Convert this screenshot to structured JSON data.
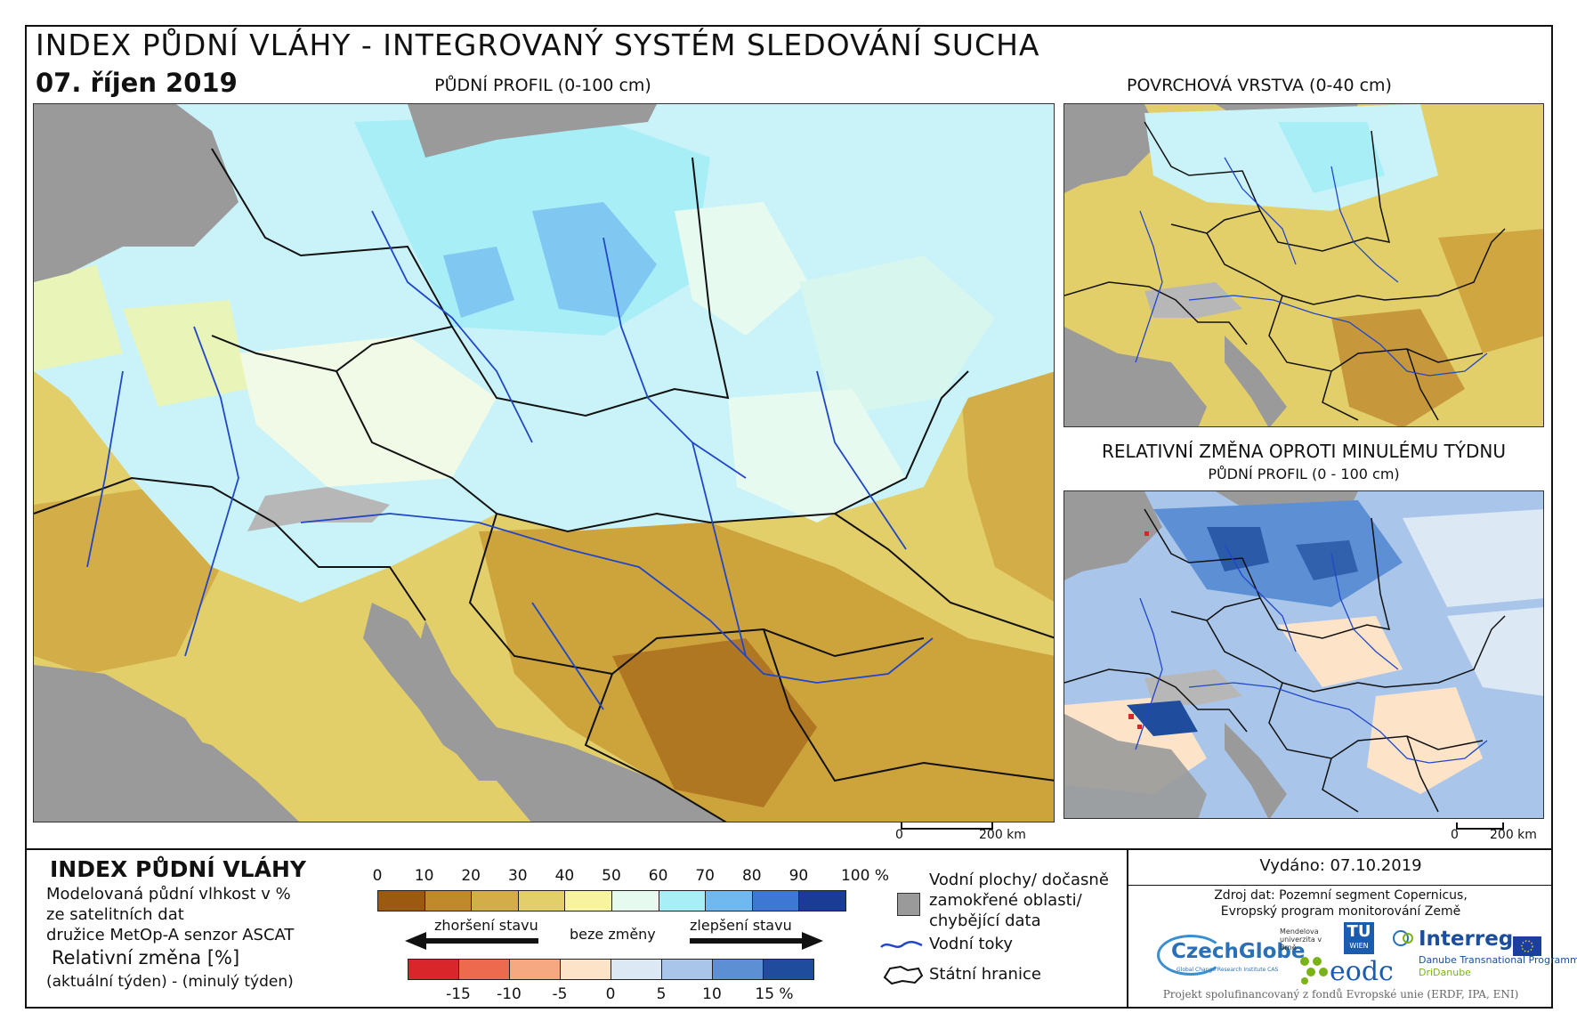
{
  "header": {
    "title": "INDEX PŮDNÍ VLÁHY - INTEGROVANÝ SYSTÉM SLEDOVÁNÍ SUCHA",
    "date": "07. říjen 2019"
  },
  "maps": {
    "main_label": "PŮDNÍ PROFIL (0-100 cm)",
    "surface_label": "POVRCHOVÁ VRSTVA (0-40 cm)",
    "change_label": "RELATIVNÍ ZMĚNA OPROTI MINULÉMU TÝDNU",
    "change_sublabel": "PŮDNÍ PROFIL (0 - 100 cm)",
    "scale_main": {
      "zero": "0",
      "end": "200 km"
    },
    "scale_small": {
      "zero": "0",
      "end": "200 km"
    }
  },
  "legend": {
    "title": "INDEX PŮDNÍ VLÁHY",
    "desc_line1": "Modelovaná půdní vlhkost v %",
    "desc_line2": "ze satelitních dat",
    "desc_line3": "družice MetOp-A senzor ASCAT",
    "change_title": "Relativní změna [%]",
    "change_desc": "(aktuální týden) - (minulý týden)",
    "index_ticks": [
      "0",
      "10",
      "20",
      "30",
      "40",
      "50",
      "60",
      "70",
      "80",
      "90",
      "100 %"
    ],
    "index_colors": [
      "#9c5a10",
      "#c08a2a",
      "#d3ae48",
      "#e3cf6a",
      "#f7f39e",
      "#e6faf0",
      "#a8eef7",
      "#6fb8f0",
      "#3d78d4",
      "#1a3c96"
    ],
    "worse_label": "zhoršení stavu",
    "nochange_label": "beze změny",
    "better_label": "zlepšení stavu",
    "change_ticks": [
      "-15",
      "-10",
      "-5",
      "0",
      "5",
      "10",
      "15 %"
    ],
    "change_colors": [
      "#d8262b",
      "#ee6a4e",
      "#f6a880",
      "#fde4c8",
      "#dce8f4",
      "#a9c6ea",
      "#5c8fd4",
      "#1f4c9c"
    ],
    "water_label_1": "Vodní plochy/ dočasně",
    "water_label_2": "zamokřené oblasti/",
    "water_label_3": "chybějící data",
    "rivers_label": "Vodní toky",
    "borders_label": "Státní hranice"
  },
  "info": {
    "issued": "Vydáno: 07.10.2019",
    "source_line1": "Zdroj dat: Pozemní segment Copernicus,",
    "source_line2": "Evropský program monitorování Země",
    "logo_czechglobe": "CzechGlobe",
    "logo_czechglobe_sub": "Global Change Research Institute CAS",
    "logo_mendel": "Mendelova univerzita v Brně",
    "logo_tu": "TU",
    "logo_tu_sub": "WIEN",
    "logo_eodc": "eodc",
    "logo_interreg": "Interreg",
    "logo_interreg_sub1": "Danube Transnational Programme",
    "logo_interreg_sub2": "DriDanube",
    "funding": "Projekt spolufinancovaný z fondů Evropské unie (ERDF, IPA, ENI)"
  },
  "colors": {
    "sea": "#9a9a9a",
    "river": "#2147c7",
    "border": "#111111"
  }
}
